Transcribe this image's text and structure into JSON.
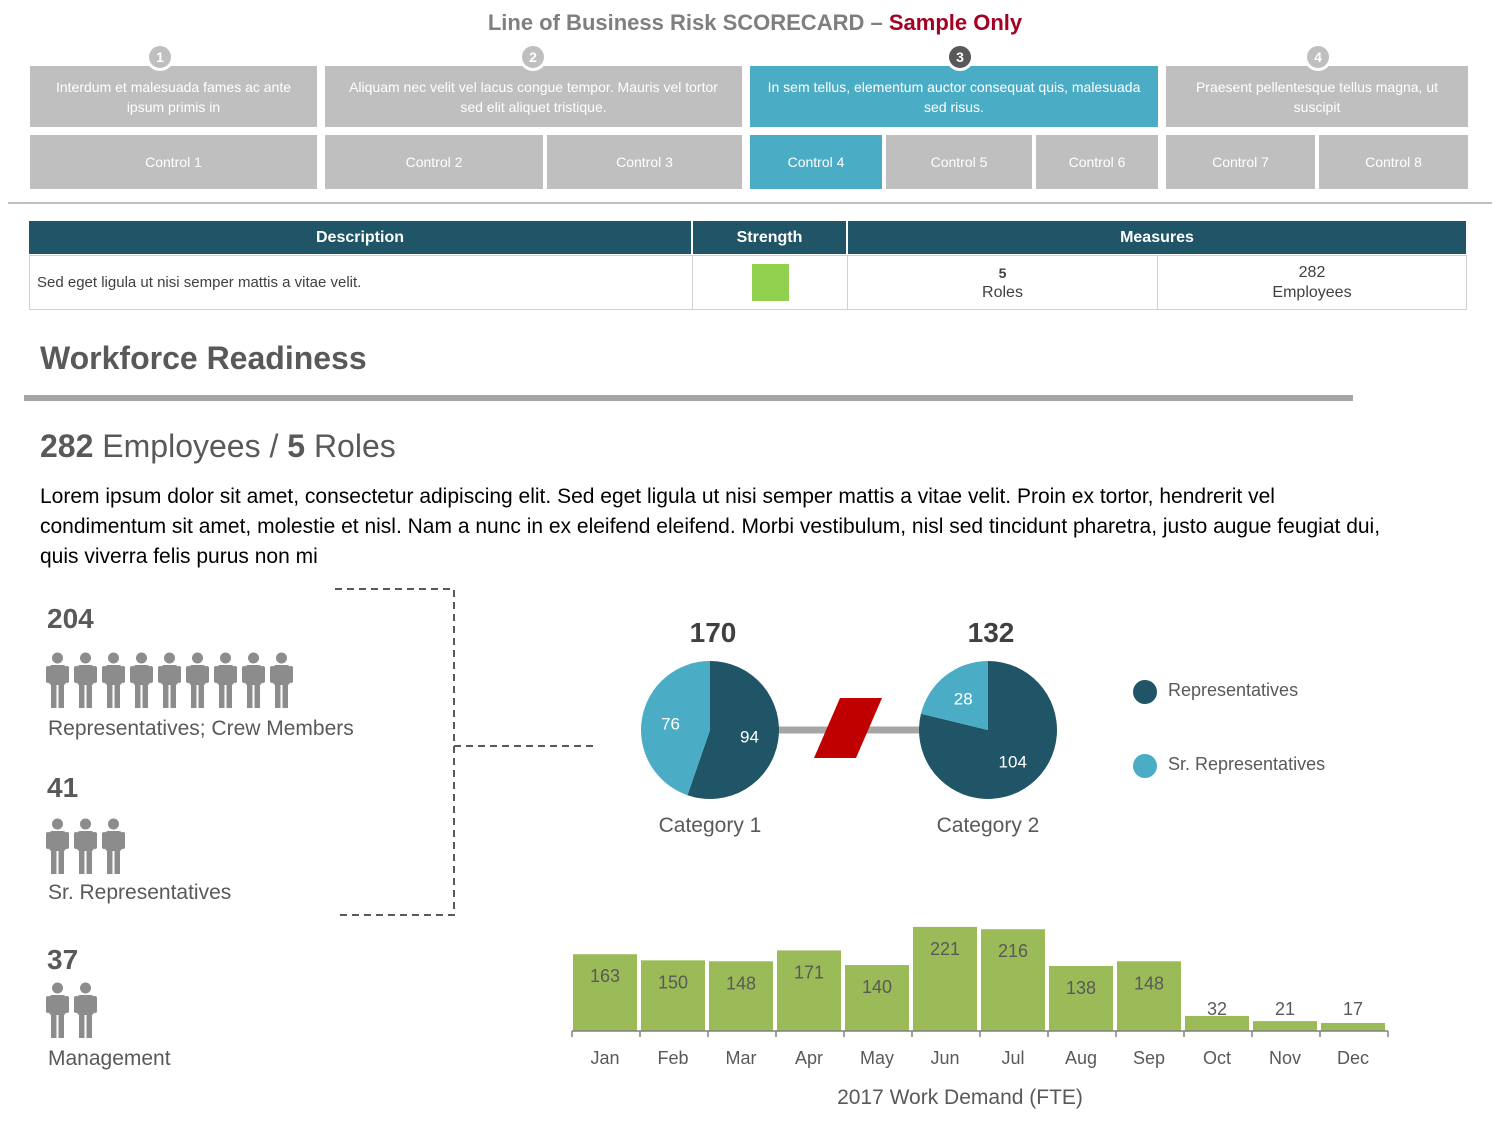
{
  "header": {
    "title": "Line of Business Risk SCORECARD",
    "separator": "–",
    "accent": "Sample Only"
  },
  "steps": [
    {
      "number": "1",
      "text": "Interdum et malesuada fames ac ante ipsum primis in",
      "active": false
    },
    {
      "number": "2",
      "text": "Aliquam nec velit vel lacus congue tempor. Mauris vel tortor sed elit aliquet tristique.",
      "active": false
    },
    {
      "number": "3",
      "text": "In sem tellus, elementum auctor consequat quis, malesuada sed risus.",
      "active": true
    },
    {
      "number": "4",
      "text": "Praesent pellentesque tellus magna, ut suscipit",
      "active": false
    }
  ],
  "controls": [
    "Control 1",
    "Control 2",
    "Control 3",
    "Control 4",
    "Control 5",
    "Control 6",
    "Control 7",
    "Control 8"
  ],
  "active_control": "Control 4",
  "table": {
    "headers": {
      "description": "Description",
      "strength": "Strength",
      "measures": "Measures"
    },
    "row": {
      "description": "Sed eget ligula ut nisi semper mattis a vitae velit.",
      "strength_color": "#92d050",
      "measure_1_value": "5",
      "measure_1_label": "Roles",
      "measure_2_value": "282",
      "measure_2_label": "Employees"
    }
  },
  "section": {
    "title": "Workforce Readiness",
    "headline_count_1": "282",
    "headline_label_1": "Employees /",
    "headline_count_2": "5",
    "headline_label_2": "Roles",
    "intro": "Lorem ipsum dolor sit amet, consectetur adipiscing elit. Sed eget ligula ut nisi semper mattis a vitae velit. Proin ex tortor, hendrerit vel condimentum sit amet, molestie et nisl. Nam a nunc in ex eleifend eleifend. Morbi vestibulum, nisl sed tincidunt pharetra, justo augue feugiat dui, quis viverra felis purus non mi"
  },
  "groups": [
    {
      "count": "204",
      "label": "Representatives; Crew Members",
      "icons": 9
    },
    {
      "count": "41",
      "label": "Sr. Representatives",
      "icons": 3
    },
    {
      "count": "37",
      "label": "Management",
      "icons": 2
    }
  ],
  "colors": {
    "dark_teal": "#1f5567",
    "light_teal": "#4bacc6",
    "bar_green": "#9bbb59",
    "grey_cell": "#bfbfbf",
    "break_red": "#c00000"
  },
  "chart_data": [
    {
      "type": "pie",
      "total": "170",
      "label": "Category 1",
      "slices": [
        {
          "name": "Representatives",
          "value": 94
        },
        {
          "name": "Sr. Representatives",
          "value": 76
        }
      ]
    },
    {
      "type": "pie",
      "total": "132",
      "label": "Category 2",
      "slices": [
        {
          "name": "Representatives",
          "value": 104
        },
        {
          "name": "Sr. Representatives",
          "value": 28
        }
      ]
    },
    {
      "type": "bar",
      "title": "2017 Work Demand (FTE)",
      "categories": [
        "Jan",
        "Feb",
        "Mar",
        "Apr",
        "May",
        "Jun",
        "Jul",
        "Aug",
        "Sep",
        "Oct",
        "Nov",
        "Dec"
      ],
      "values": [
        163,
        150,
        148,
        171,
        140,
        221,
        216,
        138,
        148,
        32,
        21,
        17
      ],
      "ylim": [
        0,
        225
      ],
      "grid": false
    }
  ],
  "legend": {
    "items": [
      {
        "name": "Representatives"
      },
      {
        "name": "Sr. Representatives"
      }
    ],
    "placement": "right"
  }
}
